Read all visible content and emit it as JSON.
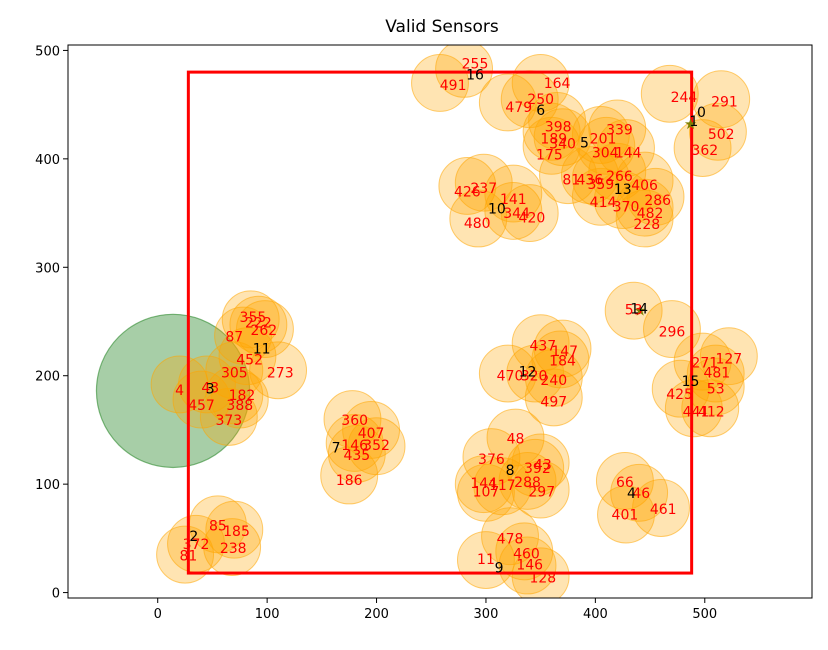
{
  "chart_data": {
    "type": "scatter",
    "title": "Valid Sensors",
    "xlabel": "",
    "ylabel": "",
    "xlim": [
      -82,
      598
    ],
    "ylim": [
      -5,
      505
    ],
    "xticks": [
      0,
      100,
      200,
      300,
      400,
      500
    ],
    "yticks": [
      0,
      100,
      200,
      300,
      400,
      500
    ],
    "grid": false,
    "colors": {
      "sensor_fill": "#ffa500",
      "region_fill": "#2e8b2e",
      "boundary": "#ff0000",
      "sensor_label": "#ff0000",
      "cluster_label": "#000000"
    },
    "boundary": {
      "x0": 28,
      "y0": 18,
      "x1": 488,
      "y1": 480
    },
    "coverage_circle": {
      "x": 14,
      "y": 186,
      "r": 70
    },
    "sensor_radius": 26,
    "sensors": [
      {
        "id": "255",
        "x": 280,
        "y": 483
      },
      {
        "id": "491",
        "x": 258,
        "y": 470
      },
      {
        "id": "164",
        "x": 350,
        "y": 470
      },
      {
        "id": "250",
        "x": 340,
        "y": 455
      },
      {
        "id": "479",
        "x": 320,
        "y": 452
      },
      {
        "id": "398",
        "x": 365,
        "y": 435
      },
      {
        "id": "189",
        "x": 360,
        "y": 425
      },
      {
        "id": "340",
        "x": 370,
        "y": 420
      },
      {
        "id": "175",
        "x": 360,
        "y": 412
      },
      {
        "id": "201",
        "x": 405,
        "y": 422
      },
      {
        "id": "339",
        "x": 420,
        "y": 428
      },
      {
        "id": "304",
        "x": 410,
        "y": 412
      },
      {
        "id": "144",
        "x": 428,
        "y": 410
      },
      {
        "id": "244",
        "x": 468,
        "y": 460
      },
      {
        "id": "291",
        "x": 515,
        "y": 455
      },
      {
        "id": "502",
        "x": 512,
        "y": 425
      },
      {
        "id": "362",
        "x": 498,
        "y": 410
      },
      {
        "id": "436",
        "x": 395,
        "y": 385
      },
      {
        "id": "81",
        "x": 375,
        "y": 385
      },
      {
        "id": "359",
        "x": 405,
        "y": 382
      },
      {
        "id": "266",
        "x": 420,
        "y": 388
      },
      {
        "id": "406",
        "x": 445,
        "y": 380
      },
      {
        "id": "286",
        "x": 455,
        "y": 365
      },
      {
        "id": "414",
        "x": 405,
        "y": 365
      },
      {
        "id": "370",
        "x": 425,
        "y": 362
      },
      {
        "id": "482",
        "x": 445,
        "y": 355
      },
      {
        "id": "228",
        "x": 445,
        "y": 345
      },
      {
        "id": "426",
        "x": 283,
        "y": 375
      },
      {
        "id": "237",
        "x": 298,
        "y": 378
      },
      {
        "id": "141",
        "x": 325,
        "y": 368
      },
      {
        "id": "420",
        "x": 340,
        "y": 350
      },
      {
        "id": "344",
        "x": 325,
        "y": 352
      },
      {
        "id": "480",
        "x": 293,
        "y": 345
      },
      {
        "id": "355",
        "x": 85,
        "y": 252
      },
      {
        "id": "222",
        "x": 92,
        "y": 247
      },
      {
        "id": "87",
        "x": 78,
        "y": 237
      },
      {
        "id": "262",
        "x": 98,
        "y": 243
      },
      {
        "id": "452",
        "x": 82,
        "y": 218
      },
      {
        "id": "273",
        "x": 110,
        "y": 205
      },
      {
        "id": "305",
        "x": 70,
        "y": 205
      },
      {
        "id": "4",
        "x": 20,
        "y": 192
      },
      {
        "id": "43",
        "x": 45,
        "y": 192
      },
      {
        "id": "182",
        "x": 70,
        "y": 182
      },
      {
        "id": "457",
        "x": 40,
        "y": 178
      },
      {
        "id": "388",
        "x": 75,
        "y": 178
      },
      {
        "id": "373",
        "x": 65,
        "y": 162
      },
      {
        "id": "53",
        "x": 435,
        "y": 260
      },
      {
        "id": "296",
        "x": 470,
        "y": 243
      },
      {
        "id": "437",
        "x": 350,
        "y": 230
      },
      {
        "id": "147",
        "x": 370,
        "y": 225
      },
      {
        "id": "184",
        "x": 368,
        "y": 215
      },
      {
        "id": "470",
        "x": 320,
        "y": 202
      },
      {
        "id": "320",
        "x": 345,
        "y": 202
      },
      {
        "id": "240",
        "x": 362,
        "y": 198
      },
      {
        "id": "497",
        "x": 362,
        "y": 180
      },
      {
        "id": "127",
        "x": 522,
        "y": 218
      },
      {
        "id": "271",
        "x": 498,
        "y": 213
      },
      {
        "id": "481",
        "x": 510,
        "y": 202
      },
      {
        "id": "425",
        "x": 478,
        "y": 188
      },
      {
        "id": "53b",
        "x": 510,
        "y": 190
      },
      {
        "id": "441",
        "x": 490,
        "y": 170
      },
      {
        "id": "412",
        "x": 505,
        "y": 170
      },
      {
        "id": "360",
        "x": 178,
        "y": 160
      },
      {
        "id": "407",
        "x": 195,
        "y": 150
      },
      {
        "id": "146",
        "x": 180,
        "y": 138
      },
      {
        "id": "352",
        "x": 200,
        "y": 135
      },
      {
        "id": "435",
        "x": 182,
        "y": 128
      },
      {
        "id": "186",
        "x": 175,
        "y": 108
      },
      {
        "id": "48",
        "x": 327,
        "y": 143
      },
      {
        "id": "376",
        "x": 305,
        "y": 125
      },
      {
        "id": "43b",
        "x": 350,
        "y": 120
      },
      {
        "id": "392",
        "x": 345,
        "y": 115
      },
      {
        "id": "288",
        "x": 338,
        "y": 103
      },
      {
        "id": "144b",
        "x": 298,
        "y": 100
      },
      {
        "id": "117",
        "x": 315,
        "y": 98
      },
      {
        "id": "297",
        "x": 350,
        "y": 95
      },
      {
        "id": "107",
        "x": 300,
        "y": 92
      },
      {
        "id": "66",
        "x": 427,
        "y": 103
      },
      {
        "id": "46",
        "x": 440,
        "y": 92
      },
      {
        "id": "461",
        "x": 460,
        "y": 78
      },
      {
        "id": "401",
        "x": 428,
        "y": 72
      },
      {
        "id": "85",
        "x": 55,
        "y": 63
      },
      {
        "id": "185",
        "x": 70,
        "y": 58
      },
      {
        "id": "372",
        "x": 35,
        "y": 45
      },
      {
        "id": "238",
        "x": 68,
        "y": 42
      },
      {
        "id": "81b",
        "x": 25,
        "y": 35
      },
      {
        "id": "478",
        "x": 322,
        "y": 52
      },
      {
        "id": "460",
        "x": 335,
        "y": 38
      },
      {
        "id": "11b",
        "x": 300,
        "y": 30
      },
      {
        "id": "146b",
        "x": 338,
        "y": 25
      },
      {
        "id": "128",
        "x": 350,
        "y": 15
      }
    ],
    "sensor_labels": [
      {
        "text": "255",
        "x": 290,
        "y": 488
      },
      {
        "text": "491",
        "x": 270,
        "y": 468
      },
      {
        "text": "164",
        "x": 365,
        "y": 470
      },
      {
        "text": "250",
        "x": 350,
        "y": 455
      },
      {
        "text": "479",
        "x": 330,
        "y": 448
      },
      {
        "text": "398",
        "x": 366,
        "y": 430
      },
      {
        "text": "189",
        "x": 362,
        "y": 419
      },
      {
        "text": "340",
        "x": 370,
        "y": 414
      },
      {
        "text": "175",
        "x": 358,
        "y": 404
      },
      {
        "text": "201",
        "x": 407,
        "y": 419
      },
      {
        "text": "339",
        "x": 422,
        "y": 427
      },
      {
        "text": "304",
        "x": 409,
        "y": 406
      },
      {
        "text": "144",
        "x": 430,
        "y": 406
      },
      {
        "text": "244",
        "x": 481,
        "y": 457
      },
      {
        "text": "291",
        "x": 518,
        "y": 453
      },
      {
        "text": "502",
        "x": 515,
        "y": 423
      },
      {
        "text": "362",
        "x": 500,
        "y": 408
      },
      {
        "text": "436",
        "x": 395,
        "y": 381
      },
      {
        "text": "81",
        "x": 378,
        "y": 381
      },
      {
        "text": "359",
        "x": 405,
        "y": 377
      },
      {
        "text": "266",
        "x": 422,
        "y": 384
      },
      {
        "text": "406",
        "x": 445,
        "y": 376
      },
      {
        "text": "286",
        "x": 457,
        "y": 362
      },
      {
        "text": "414",
        "x": 407,
        "y": 360
      },
      {
        "text": "370",
        "x": 428,
        "y": 356
      },
      {
        "text": "482",
        "x": 450,
        "y": 350
      },
      {
        "text": "228",
        "x": 447,
        "y": 340
      },
      {
        "text": "426",
        "x": 283,
        "y": 370
      },
      {
        "text": "237",
        "x": 298,
        "y": 373
      },
      {
        "text": "141",
        "x": 325,
        "y": 363
      },
      {
        "text": "420",
        "x": 342,
        "y": 346
      },
      {
        "text": "344",
        "x": 328,
        "y": 350
      },
      {
        "text": "480",
        "x": 292,
        "y": 341
      },
      {
        "text": "355",
        "x": 87,
        "y": 254
      },
      {
        "text": "222",
        "x": 92,
        "y": 249
      },
      {
        "text": "87",
        "x": 70,
        "y": 236
      },
      {
        "text": "262",
        "x": 97,
        "y": 242
      },
      {
        "text": "452",
        "x": 84,
        "y": 215
      },
      {
        "text": "273",
        "x": 112,
        "y": 203
      },
      {
        "text": "305",
        "x": 70,
        "y": 203
      },
      {
        "text": "4",
        "x": 20,
        "y": 187
      },
      {
        "text": "43",
        "x": 48,
        "y": 189
      },
      {
        "text": "182",
        "x": 77,
        "y": 182
      },
      {
        "text": "457",
        "x": 40,
        "y": 173
      },
      {
        "text": "388",
        "x": 75,
        "y": 173
      },
      {
        "text": "373",
        "x": 65,
        "y": 159
      },
      {
        "text": "53",
        "x": 435,
        "y": 261
      },
      {
        "text": "296",
        "x": 470,
        "y": 241
      },
      {
        "text": "437",
        "x": 352,
        "y": 228
      },
      {
        "text": "147",
        "x": 372,
        "y": 223
      },
      {
        "text": "184",
        "x": 370,
        "y": 214
      },
      {
        "text": "470",
        "x": 322,
        "y": 200
      },
      {
        "text": "320",
        "x": 344,
        "y": 200
      },
      {
        "text": "240",
        "x": 362,
        "y": 196
      },
      {
        "text": "497",
        "x": 362,
        "y": 176
      },
      {
        "text": "127",
        "x": 522,
        "y": 216
      },
      {
        "text": "271",
        "x": 500,
        "y": 212
      },
      {
        "text": "481",
        "x": 511,
        "y": 203
      },
      {
        "text": "425",
        "x": 477,
        "y": 183
      },
      {
        "text": "53",
        "x": 510,
        "y": 188
      },
      {
        "text": "441",
        "x": 492,
        "y": 167
      },
      {
        "text": "412",
        "x": 506,
        "y": 167
      },
      {
        "text": "360",
        "x": 180,
        "y": 159
      },
      {
        "text": "407",
        "x": 195,
        "y": 147
      },
      {
        "text": "146",
        "x": 180,
        "y": 136
      },
      {
        "text": "352",
        "x": 200,
        "y": 136
      },
      {
        "text": "435",
        "x": 182,
        "y": 127
      },
      {
        "text": "186",
        "x": 175,
        "y": 104
      },
      {
        "text": "48",
        "x": 327,
        "y": 142
      },
      {
        "text": "376",
        "x": 305,
        "y": 123
      },
      {
        "text": "43",
        "x": 352,
        "y": 118
      },
      {
        "text": "392",
        "x": 347,
        "y": 115
      },
      {
        "text": "288",
        "x": 338,
        "y": 102
      },
      {
        "text": "144",
        "x": 298,
        "y": 101
      },
      {
        "text": "117",
        "x": 315,
        "y": 99
      },
      {
        "text": "297",
        "x": 351,
        "y": 93
      },
      {
        "text": "107",
        "x": 300,
        "y": 93
      },
      {
        "text": "66",
        "x": 427,
        "y": 102
      },
      {
        "text": "46",
        "x": 442,
        "y": 92
      },
      {
        "text": "461",
        "x": 462,
        "y": 77
      },
      {
        "text": "401",
        "x": 427,
        "y": 72
      },
      {
        "text": "85",
        "x": 55,
        "y": 62
      },
      {
        "text": "185",
        "x": 72,
        "y": 57
      },
      {
        "text": "372",
        "x": 35,
        "y": 45
      },
      {
        "text": "238",
        "x": 69,
        "y": 41
      },
      {
        "text": "81",
        "x": 28,
        "y": 34
      },
      {
        "text": "478",
        "x": 322,
        "y": 50
      },
      {
        "text": "460",
        "x": 337,
        "y": 36
      },
      {
        "text": "11",
        "x": 300,
        "y": 31
      },
      {
        "text": "146",
        "x": 340,
        "y": 26
      },
      {
        "text": "128",
        "x": 352,
        "y": 14
      }
    ],
    "clusters": [
      {
        "id": "0",
        "x": 497,
        "y": 443
      },
      {
        "id": "1",
        "x": 490,
        "y": 435
      },
      {
        "id": "16",
        "x": 290,
        "y": 478
      },
      {
        "id": "6",
        "x": 350,
        "y": 445
      },
      {
        "id": "5",
        "x": 390,
        "y": 415
      },
      {
        "id": "13",
        "x": 425,
        "y": 372
      },
      {
        "id": "10",
        "x": 310,
        "y": 354
      },
      {
        "id": "14",
        "x": 440,
        "y": 262
      },
      {
        "id": "11",
        "x": 95,
        "y": 225
      },
      {
        "id": "12",
        "x": 338,
        "y": 204
      },
      {
        "id": "15",
        "x": 487,
        "y": 195
      },
      {
        "id": "3",
        "x": 48,
        "y": 188
      },
      {
        "id": "7",
        "x": 163,
        "y": 134
      },
      {
        "id": "8",
        "x": 322,
        "y": 113
      },
      {
        "id": "4",
        "x": 433,
        "y": 92
      },
      {
        "id": "2",
        "x": 33,
        "y": 52
      },
      {
        "id": "9",
        "x": 312,
        "y": 23
      }
    ],
    "star_markers": [
      {
        "x": 487,
        "y": 432
      },
      {
        "x": 441,
        "y": 260
      }
    ]
  }
}
